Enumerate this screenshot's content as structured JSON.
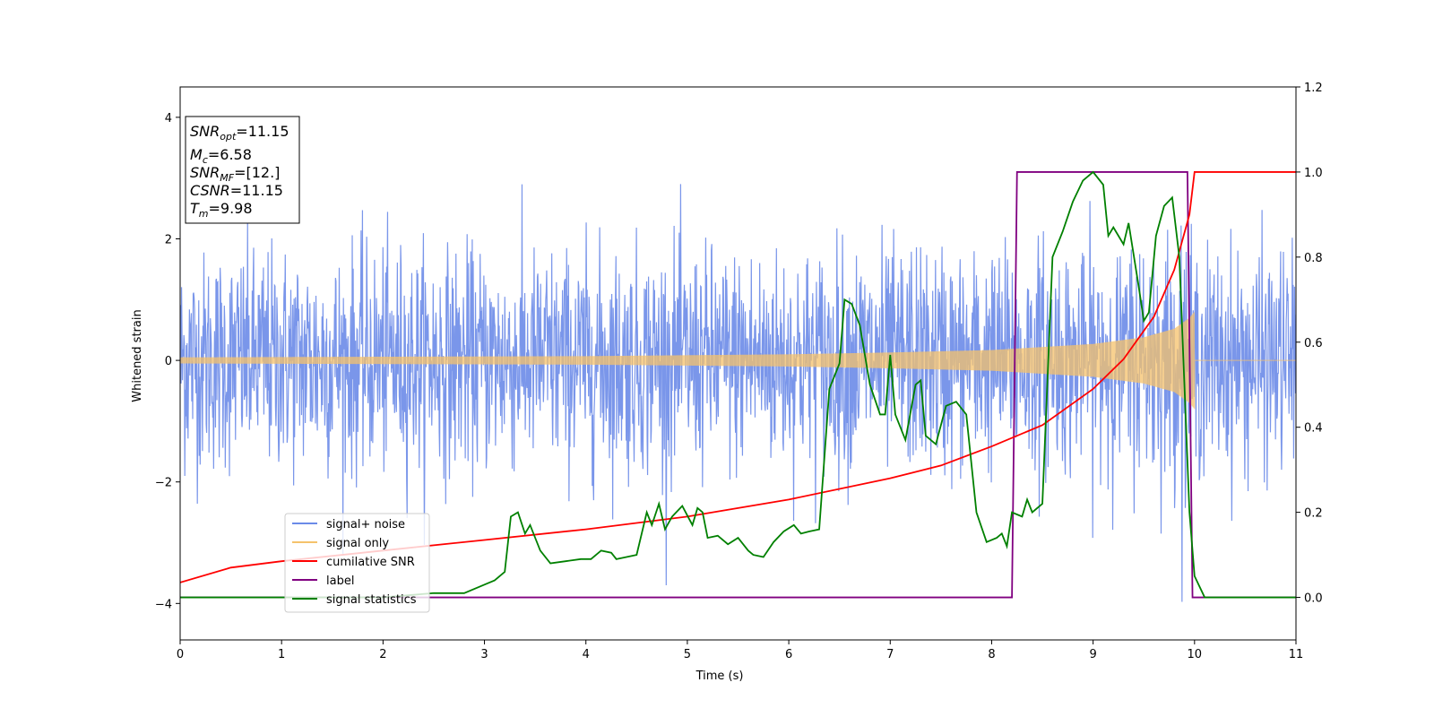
{
  "chart_data": {
    "type": "line",
    "xlabel": "Time (s)",
    "ylabel": "Whitened strain",
    "xlim": [
      0,
      11
    ],
    "ylim_left": [
      -4.6,
      4.5
    ],
    "ylim_right": [
      -0.1,
      1.2
    ],
    "x_ticks": [
      "0",
      "1",
      "2",
      "3",
      "4",
      "5",
      "6",
      "7",
      "8",
      "9",
      "10",
      "11"
    ],
    "y_left_ticks": [
      "−4",
      "−2",
      "0",
      "2",
      "4"
    ],
    "y_right_ticks": [
      "0.0",
      "0.2",
      "0.4",
      "0.6",
      "0.8",
      "1.0",
      "1.2"
    ],
    "grid": false,
    "legend_position": "lower-left",
    "info_box": {
      "snr_opt": {
        "base": "SNR",
        "sub": "opt",
        "value": "=11.15"
      },
      "mc": {
        "base": "M",
        "sub": "c",
        "value": "=6.58"
      },
      "snr_mf": {
        "base": "SNR",
        "sub": "MF",
        "value": "=[12.]"
      },
      "csnr": {
        "base": "CSNR",
        "sub": "",
        "value": "=11.15"
      },
      "tm": {
        "base": "T",
        "sub": "m",
        "value": "=9.98"
      }
    },
    "series": [
      {
        "name": "signal+ noise",
        "color": "#6b8be8",
        "axis": "left",
        "noise_sigma": 0.9,
        "x_range": [
          0,
          11
        ],
        "samples": 2400
      },
      {
        "name": "signal only",
        "color": "#f5c26b",
        "axis": "left",
        "x_range": [
          0,
          10.0
        ],
        "envelope": {
          "x": [
            0,
            2,
            4,
            6,
            7,
            8,
            9,
            9.5,
            9.8,
            9.95,
            10.0
          ],
          "amp": [
            0.05,
            0.06,
            0.07,
            0.1,
            0.13,
            0.17,
            0.27,
            0.38,
            0.52,
            0.7,
            0.8
          ]
        }
      },
      {
        "name": "cumilative SNR",
        "color": "#ff0000",
        "axis": "right",
        "x": [
          0,
          0.5,
          1,
          2,
          3,
          4,
          5,
          6,
          7,
          7.5,
          8,
          8.5,
          9,
          9.3,
          9.6,
          9.8,
          9.95,
          10.0,
          11
        ],
        "y": [
          0.035,
          0.07,
          0.085,
          0.11,
          0.135,
          0.16,
          0.19,
          0.23,
          0.28,
          0.31,
          0.355,
          0.405,
          0.49,
          0.56,
          0.66,
          0.77,
          0.9,
          1.0,
          1.0
        ]
      },
      {
        "name": "label",
        "color": "#800080",
        "axis": "right",
        "x": [
          0,
          8.2,
          8.25,
          9.93,
          9.98,
          11
        ],
        "y": [
          0.0,
          0.0,
          1.0,
          1.0,
          0.0,
          0.0
        ]
      },
      {
        "name": "signal statistics",
        "color": "#008000",
        "axis": "right",
        "x": [
          0,
          1,
          2,
          2.5,
          2.8,
          3.0,
          3.1,
          3.2,
          3.26,
          3.33,
          3.4,
          3.45,
          3.55,
          3.65,
          3.8,
          3.95,
          4.05,
          4.15,
          4.25,
          4.3,
          4.4,
          4.5,
          4.6,
          4.65,
          4.72,
          4.78,
          4.85,
          4.95,
          5.05,
          5.1,
          5.15,
          5.2,
          5.3,
          5.4,
          5.5,
          5.6,
          5.65,
          5.75,
          5.85,
          5.95,
          6.05,
          6.12,
          6.2,
          6.3,
          6.4,
          6.5,
          6.55,
          6.62,
          6.7,
          6.8,
          6.9,
          6.95,
          7.0,
          7.05,
          7.15,
          7.25,
          7.3,
          7.35,
          7.45,
          7.55,
          7.65,
          7.75,
          7.85,
          7.95,
          8.05,
          8.1,
          8.15,
          8.2,
          8.3,
          8.35,
          8.4,
          8.5,
          8.6,
          8.7,
          8.8,
          8.9,
          9.0,
          9.1,
          9.15,
          9.2,
          9.25,
          9.3,
          9.35,
          9.45,
          9.5,
          9.55,
          9.62,
          9.7,
          9.78,
          9.85,
          9.9,
          9.95,
          10.0,
          10.1,
          11
        ],
        "y": [
          0.0,
          0.0,
          0.0,
          0.01,
          0.01,
          0.03,
          0.04,
          0.06,
          0.19,
          0.2,
          0.15,
          0.17,
          0.11,
          0.08,
          0.085,
          0.09,
          0.09,
          0.11,
          0.105,
          0.09,
          0.095,
          0.1,
          0.2,
          0.17,
          0.22,
          0.16,
          0.19,
          0.215,
          0.17,
          0.21,
          0.2,
          0.14,
          0.145,
          0.125,
          0.14,
          0.11,
          0.1,
          0.095,
          0.13,
          0.155,
          0.17,
          0.15,
          0.155,
          0.16,
          0.49,
          0.55,
          0.7,
          0.69,
          0.64,
          0.5,
          0.43,
          0.43,
          0.57,
          0.43,
          0.37,
          0.5,
          0.51,
          0.38,
          0.36,
          0.45,
          0.46,
          0.43,
          0.2,
          0.13,
          0.14,
          0.15,
          0.12,
          0.2,
          0.19,
          0.23,
          0.2,
          0.22,
          0.8,
          0.86,
          0.93,
          0.98,
          1.0,
          0.97,
          0.85,
          0.87,
          0.85,
          0.83,
          0.88,
          0.73,
          0.65,
          0.67,
          0.85,
          0.92,
          0.94,
          0.8,
          0.5,
          0.2,
          0.05,
          0.0,
          0.0
        ]
      }
    ]
  }
}
